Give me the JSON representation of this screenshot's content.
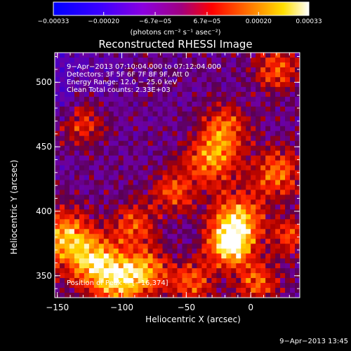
{
  "title": "Reconstructed RHESSI Image",
  "colorbar": {
    "units_label": "(photons cm⁻² s⁻¹ asec⁻²)",
    "tick_labels": [
      "−0.00033",
      "−0.00020",
      "−6.7e−05",
      "6.7e−05",
      "0.00020",
      "0.00033"
    ],
    "tick_values": [
      -0.00033,
      -0.0002,
      -6.7e-05,
      6.7e-05,
      0.0002,
      0.00033
    ],
    "range": [
      -0.00033,
      0.00033
    ]
  },
  "overlay": {
    "time_range": "9−Apr−2013 07:10:04.000 to 07:12:04.000",
    "detectors": "Detectors: 3F 5F 6F 7F 8F 9F, Att 0",
    "energy": "Energy Range: 12.0 − 25.0 keV",
    "method": "Clean     Total counts: 2.33E+03"
  },
  "peak_label": "Position of Peak = [−16,374]",
  "peak_position": [
    -16,
    374
  ],
  "axes": {
    "xlabel": "Heliocentric X (arcsec)",
    "ylabel": "Heliocentric Y (arcsec)",
    "xlim": [
      -152,
      38
    ],
    "ylim": [
      333,
      523
    ],
    "xticks": [
      -150,
      -100,
      -50,
      0
    ],
    "xtick_labels": [
      "−150",
      "−100",
      "−50",
      "0"
    ],
    "yticks": [
      350,
      400,
      450,
      500
    ],
    "ytick_labels": [
      "350",
      "400",
      "450",
      "500"
    ]
  },
  "footer": "9−Apr−2013 13:45"
}
